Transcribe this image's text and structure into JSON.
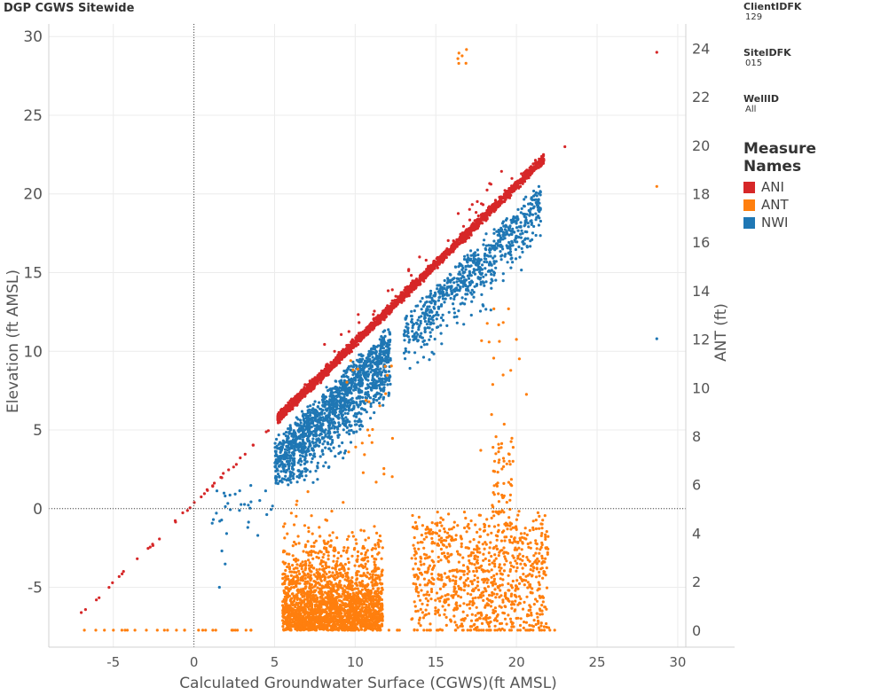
{
  "title": "DGP CGWS Sitewide",
  "filters": [
    {
      "label": "ClientIDFK",
      "value": "129"
    },
    {
      "label": "SiteIDFK",
      "value": "015"
    },
    {
      "label": "WellID",
      "value": "All"
    }
  ],
  "legend": {
    "title": "Measure Names",
    "items": [
      {
        "name": "ANI",
        "color": "#d62728"
      },
      {
        "name": "ANT",
        "color": "#ff7f0e"
      },
      {
        "name": "NWI",
        "color": "#1f77b4"
      }
    ]
  },
  "chart_data": {
    "type": "scatter",
    "xlabel": "Calculated Groundwater Surface (CGWS)(ft AMSL)",
    "ylabel": "Elevation (ft AMSL)",
    "y2label": "ANT (ft)",
    "xlim": [
      -9,
      30.5
    ],
    "ylim": [
      -8.8,
      30.8
    ],
    "y2lim": [
      -0.7,
      25
    ],
    "xticks": [
      -5,
      0,
      5,
      10,
      15,
      20,
      25,
      30
    ],
    "yticks": [
      -5,
      0,
      5,
      10,
      15,
      20,
      25,
      30
    ],
    "y2ticks": [
      0,
      2,
      4,
      6,
      8,
      10,
      12,
      14,
      16,
      18,
      20,
      22,
      24
    ],
    "grid": true,
    "legend_position": "right",
    "series_summary": [
      {
        "name": "ANI",
        "axis": "left",
        "pattern": "y ≈ x, from x ≈ -7 to 23",
        "outliers": [
          [
            28.7,
            29.0
          ]
        ]
      },
      {
        "name": "NWI",
        "axis": "left",
        "pattern": "below y = x, dense cluster x 5-12 (y 2-10), band x 13-22 (y 9-20)",
        "outliers": [
          [
            28.7,
            10.8
          ]
        ]
      },
      {
        "name": "ANT",
        "axis": "right",
        "pattern": "mostly 0-6 ft, dense at x 5-12 and x 14-22",
        "outliers": [
          [
            16.5,
            23.7
          ],
          [
            28.7,
            18.3
          ]
        ]
      }
    ]
  }
}
